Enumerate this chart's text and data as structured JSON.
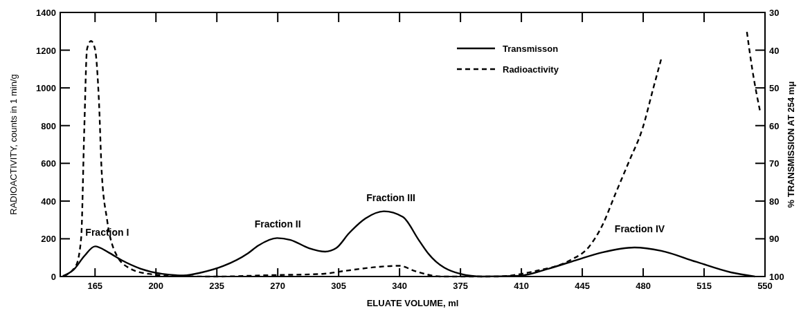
{
  "chart_data": {
    "type": "line",
    "xlabel": "ELUATE VOLUME, ml",
    "ylabel": "RADIOACTIVITY, counts in 1 min/g",
    "y2label": "% TRANSMISSION AT 254 mμ",
    "xlim": [
      145,
      550
    ],
    "xticks": [
      165,
      200,
      235,
      270,
      305,
      340,
      375,
      410,
      445,
      480,
      515,
      550
    ],
    "ylim": [
      0,
      1400
    ],
    "yticks": [
      0,
      200,
      400,
      600,
      800,
      1000,
      1200,
      1400
    ],
    "y2lim": [
      100,
      30
    ],
    "y2ticks": [
      30,
      40,
      50,
      60,
      70,
      80,
      90,
      100
    ],
    "legend": "top",
    "grid": false,
    "series": [
      {
        "name": "Transmisson",
        "color": "#000000",
        "axis": "y2",
        "line_style": "solid",
        "x": [
          146.5,
          152.7,
          158.8,
          165,
          172.7,
          180.4,
          191,
          203.5,
          215.8,
          226.5,
          238.8,
          252.7,
          258.8,
          269.6,
          277.3,
          288,
          297.3,
          303.5,
          311,
          320.4,
          331,
          341.9,
          351,
          356.5,
          375,
          387.3,
          408.8,
          425.8,
          441.2,
          456.5,
          475,
          490.4,
          510.4,
          530.4,
          544.2
        ],
        "values": [
          99.9,
          98.2,
          94.6,
          92,
          93.6,
          95.7,
          97.9,
          99.3,
          99.7,
          98.9,
          97.2,
          93.9,
          91.8,
          89.8,
          90.3,
          92.5,
          93.4,
          92.5,
          88.5,
          84.6,
          82.7,
          84.2,
          90.3,
          93.9,
          99.3,
          100,
          99.8,
          97.9,
          95.7,
          93.6,
          92.3,
          93.2,
          96.1,
          98.9,
          100
        ]
      },
      {
        "name": "Radioactivity",
        "color": "#000000",
        "line_style": "dashed",
        "x": [
          147,
          154,
          157,
          158.8,
          160.4,
          162.7,
          165,
          167.3,
          168.8,
          171.9,
          177.3,
          185,
          195.8,
          211,
          234,
          265,
          295.8,
          308,
          326.5,
          340,
          348.8,
          364,
          395,
          418,
          438,
          448.8,
          456.5,
          464.2,
          472,
          479.6,
          485.8,
          490.4,
          null,
          539.6,
          542.7,
          547.3
        ],
        "values": [
          3,
          57,
          201,
          775,
          1206,
          1249,
          1206,
          919,
          560,
          302,
          115,
          43,
          14,
          3,
          0,
          7,
          14,
          29,
          50,
          57,
          29,
          0,
          0,
          29,
          86,
          157,
          271,
          442,
          613,
          784,
          998,
          1155,
          null,
          1297,
          1098,
          870
        ]
      }
    ],
    "annotations": [
      "Fraction I",
      "Fraction II",
      "Fraction III",
      "Fraction IV"
    ]
  }
}
